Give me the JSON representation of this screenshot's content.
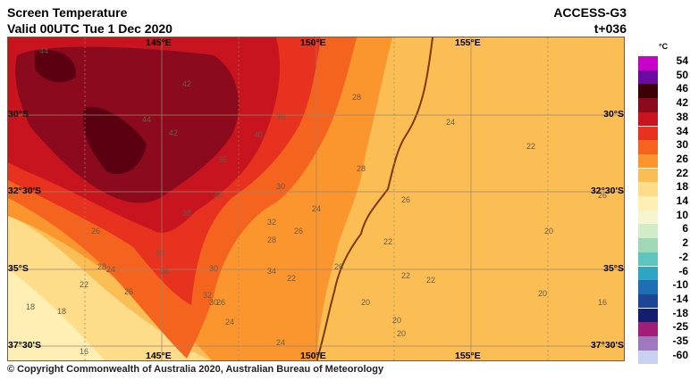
{
  "header": {
    "title": "Screen Temperature",
    "valid": "Valid 00UTC Tue 1 Dec 2020",
    "model": "ACCESS-G3",
    "lead": "t+036"
  },
  "map": {
    "lon_top": [
      "145°E",
      "150°E",
      "155°E"
    ],
    "lon_bottom": [
      "145°E",
      "150°E",
      "155°E"
    ],
    "lat_left": [
      "30°S",
      "32°30'S",
      "35°S",
      "37°30'S"
    ],
    "lat_right": [
      "30°S",
      "32°30'S",
      "35°S",
      "37°30'S"
    ],
    "contour_labels": [
      "44",
      "42",
      "44",
      "42",
      "40",
      "36",
      "28",
      "26",
      "24",
      "30",
      "32",
      "36",
      "38",
      "40",
      "40",
      "36",
      "34",
      "26",
      "28",
      "26",
      "22",
      "24",
      "22",
      "22",
      "20",
      "20",
      "18",
      "16",
      "22",
      "24",
      "26",
      "28",
      "26",
      "30",
      "32",
      "28",
      "30",
      "26",
      "24",
      "22",
      "24",
      "20",
      "18",
      "20",
      "22",
      "20",
      "26",
      "16"
    ]
  },
  "colorbar": {
    "unit": "°C",
    "levels": [
      {
        "label": "54",
        "color": "#c800c8"
      },
      {
        "label": "50",
        "color": "#6a0aa0"
      },
      {
        "label": "46",
        "color": "#3c0008"
      },
      {
        "label": "42",
        "color": "#8c0a1e"
      },
      {
        "label": "38",
        "color": "#c8141e"
      },
      {
        "label": "34",
        "color": "#e6321e"
      },
      {
        "label": "30",
        "color": "#f5641e"
      },
      {
        "label": "26",
        "color": "#fa962d"
      },
      {
        "label": "22",
        "color": "#fbbe55"
      },
      {
        "label": "18",
        "color": "#fddc8a"
      },
      {
        "label": "14",
        "color": "#fef0b4"
      },
      {
        "label": "10",
        "color": "#f5f5d2"
      },
      {
        "label": "6",
        "color": "#d2ecc8"
      },
      {
        "label": "2",
        "color": "#a0d7b4"
      },
      {
        "label": "-2",
        "color": "#5fc3be"
      },
      {
        "label": "-6",
        "color": "#2da5c3"
      },
      {
        "label": "-10",
        "color": "#1e6eb4"
      },
      {
        "label": "-14",
        "color": "#1e4696"
      },
      {
        "label": "-18",
        "color": "#141e6e"
      },
      {
        "label": "-25",
        "color": "#a01e78"
      },
      {
        "label": "-35",
        "color": "#a078be"
      },
      {
        "label": "-60",
        "color": "#c8d2f0"
      }
    ]
  },
  "copyright": "© Copyright Commonwealth of Australia 2020, Australian Bureau of Meteorology"
}
